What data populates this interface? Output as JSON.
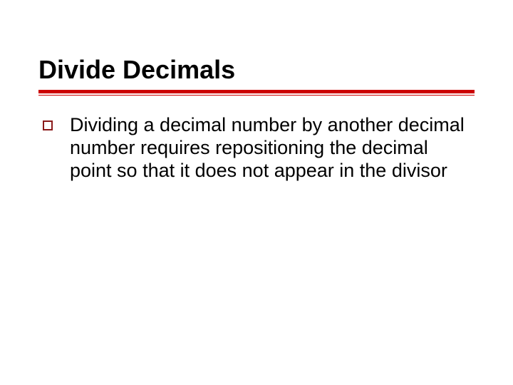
{
  "slide": {
    "title": "Divide Decimals",
    "title_color": "#000000",
    "title_fontsize": 36,
    "accent_color": "#cc0000",
    "bullet_border_color": "#8b1a1a",
    "background_color": "#ffffff",
    "body_fontsize": 27,
    "bullets": [
      {
        "text": "Dividing a decimal number by another decimal number requires repositioning the decimal point so that it does not appear in the divisor"
      }
    ]
  }
}
